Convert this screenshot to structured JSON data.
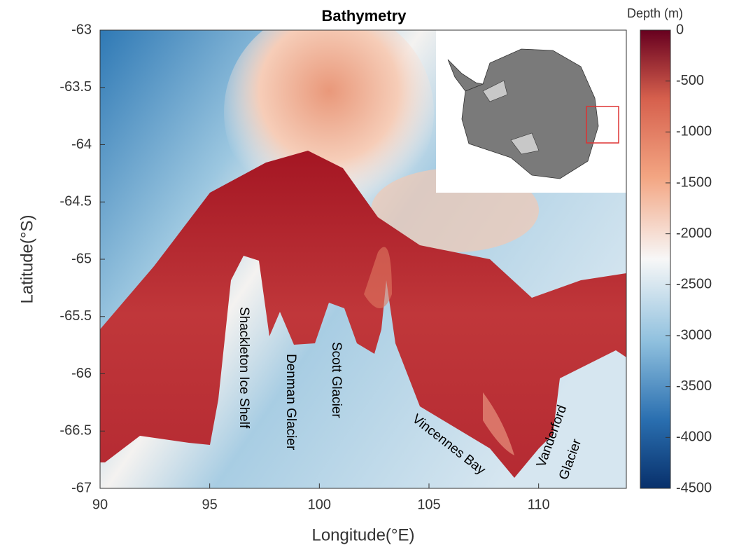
{
  "chart_data": {
    "type": "map",
    "title": "Bathymetry",
    "x_label": "Longitude(°E)",
    "y_label": "Latitude(°S)",
    "xlim": [
      90,
      114
    ],
    "xticks": [
      90,
      95,
      100,
      105,
      110
    ],
    "ylim": [
      -67,
      -63
    ],
    "yticks": [
      -67,
      -66.5,
      -66,
      -65.5,
      -65,
      -64.5,
      -64,
      -63.5,
      -63
    ],
    "colorbar": {
      "label": "Depth (m)",
      "lim": [
        -4500,
        0
      ],
      "ticks": [
        0,
        -500,
        -1000,
        -1500,
        -2000,
        -2500,
        -3000,
        -3500,
        -4000,
        -4500
      ]
    },
    "annotations": [
      "Shackleton Ice Shelf",
      "Denman Glacier",
      "Scott Glacier",
      "Vincennes Bay",
      "Vanderford",
      "Glacier"
    ]
  }
}
